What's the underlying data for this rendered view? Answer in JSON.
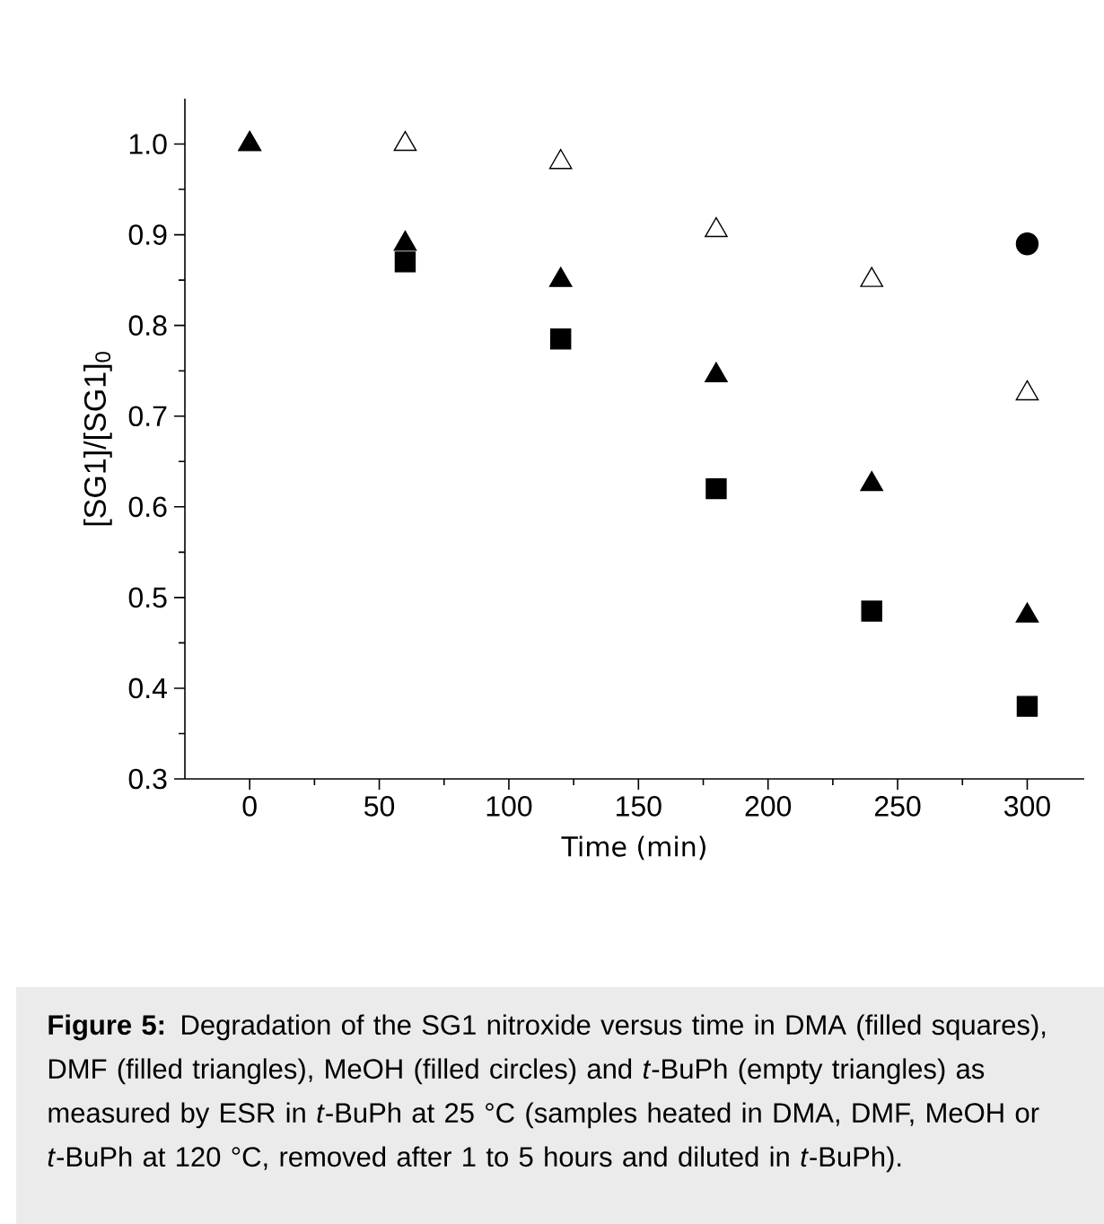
{
  "chart_data": {
    "type": "scatter",
    "xlabel": "Time (min)",
    "ylabel": "[SG1]/[SG1]$_{0}$",
    "x": [
      0,
      60,
      120,
      180,
      240,
      300
    ],
    "series": [
      {
        "color": "#000000",
        "marker": "square",
        "values": [
          null,
          0.87,
          0.785,
          0.62,
          0.485,
          0.38
        ]
      },
      {
        "color": "#000000",
        "marker": "triangle",
        "values": [
          1.0,
          0.89,
          0.85,
          0.745,
          0.625,
          0.48
        ]
      },
      {
        "color": "#000000",
        "marker": "circle",
        "values": [
          null,
          null,
          null,
          null,
          null,
          0.89
        ]
      },
      {
        "color": "#000000",
        "marker": "triangle-open",
        "values": [
          1.0,
          1.0,
          0.98,
          0.905,
          0.85,
          0.725
        ]
      }
    ],
    "xlim": [
      -25,
      322
    ],
    "ylim": [
      0.3,
      1.05
    ],
    "xticks": [
      0,
      50,
      100,
      150,
      200,
      250,
      300
    ],
    "yticks": [
      0.3,
      0.4,
      0.5,
      0.6,
      0.7,
      0.8,
      0.9,
      {
        "value": 1.0,
        "label": "1.0"
      }
    ],
    "annotations": [
      "**Figure 5:** Degradation of the SG1 nitroxide versus time in DMA (filled squares), DMF (filled triangles), MeOH (filled circles) and *t*-BuPh (empty triangles) as measured by ESR in *t*-BuPh at 25 °C (samples heated in DMA, DMF, MeOH or *t*-BuPh at 120 °C, removed after 1 to 5 hours and diluted in *t*-BuPh)."
    ]
  }
}
